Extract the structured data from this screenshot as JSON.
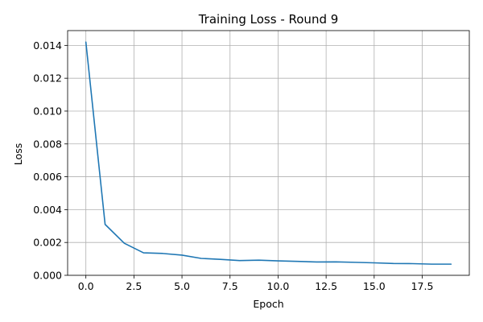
{
  "chart_data": {
    "type": "line",
    "title": "Training Loss - Round 9",
    "xlabel": "Epoch",
    "ylabel": "Loss",
    "xlim": [
      -0.95,
      19.95
    ],
    "ylim": [
      0,
      0.0149
    ],
    "xticks": [
      0,
      2.5,
      5,
      7.5,
      10,
      12.5,
      15,
      17.5
    ],
    "xtick_labels": [
      "0.0",
      "2.5",
      "5.0",
      "7.5",
      "10.0",
      "12.5",
      "15.0",
      "17.5"
    ],
    "yticks": [
      0,
      0.002,
      0.004,
      0.006,
      0.008,
      0.01,
      0.012,
      0.014
    ],
    "ytick_labels": [
      "0.000",
      "0.002",
      "0.004",
      "0.006",
      "0.008",
      "0.010",
      "0.012",
      "0.014"
    ],
    "grid": true,
    "series": [
      {
        "color": "#1f77b4",
        "x": [
          0,
          1,
          2,
          3,
          4,
          5,
          6,
          7,
          8,
          9,
          10,
          11,
          12,
          13,
          14,
          15,
          16,
          17,
          18,
          19
        ],
        "y": [
          0.0142,
          0.0031,
          0.00195,
          0.00137,
          0.00133,
          0.00123,
          0.00103,
          0.00097,
          0.0009,
          0.00092,
          0.00088,
          0.00085,
          0.00081,
          0.00082,
          0.00079,
          0.00076,
          0.00072,
          0.00071,
          0.00068,
          0.00068
        ]
      }
    ]
  }
}
